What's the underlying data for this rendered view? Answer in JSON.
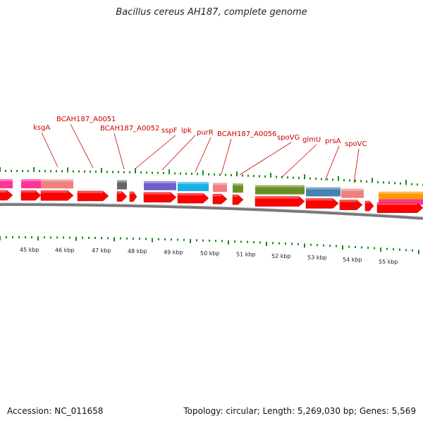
{
  "title": "Bacillus cereus AH187, complete genome",
  "footer": {
    "accession": "Accession: NC_011658",
    "topology": "Topology: circular; Length: 5,269,030 bp; Genes: 5,569"
  },
  "colors": {
    "cds": "#ff0000",
    "backbone": "#888888",
    "tick": "#1a8a1a",
    "label": "#cc0000",
    "pink": "#ff3399",
    "salmon": "#f08080",
    "gray": "#666666",
    "violet": "#7060cc",
    "cyan": "#1ab0e6",
    "olive": "#6b8e23",
    "steelblue": "#4682b4",
    "orange": "#ff9900"
  },
  "gene_labels": [
    {
      "name": "ksgA"
    },
    {
      "name": "BCAH187_A0051"
    },
    {
      "name": "BCAH187_A0052"
    },
    {
      "name": "sspF"
    },
    {
      "name": "ipk"
    },
    {
      "name": "purR"
    },
    {
      "name": "BCAH187_A0056"
    },
    {
      "name": "spoVG"
    },
    {
      "name": "glmU"
    },
    {
      "name": "prsA"
    },
    {
      "name": "spoVC"
    }
  ],
  "kbp_labels": [
    "45 kbp",
    "46 kbp",
    "47 kbp",
    "48 kbp",
    "49 kbp",
    "50 kbp",
    "51 kbp",
    "52 kbp",
    "53 kbp",
    "54 kbp",
    "55 kbp"
  ]
}
